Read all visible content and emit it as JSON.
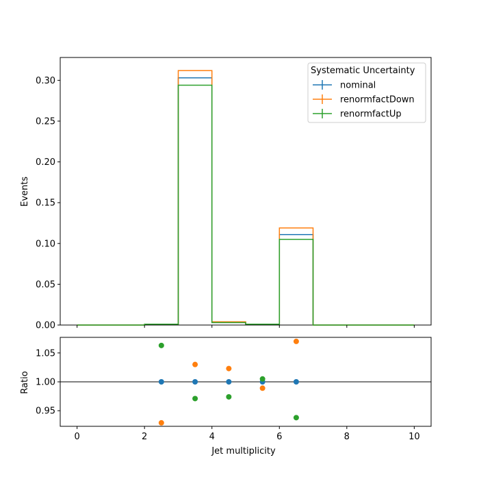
{
  "chart_data": [
    {
      "type": "line",
      "ylabel": "Events",
      "xlim": [
        -0.5,
        10.5
      ],
      "ylim": [
        0,
        0.328
      ],
      "xticks": [
        0,
        2,
        4,
        6,
        8,
        10
      ],
      "yticks": [
        "0.00",
        "0.05",
        "0.10",
        "0.15",
        "0.20",
        "0.25",
        "0.30"
      ],
      "bin_edges": [
        0,
        1,
        2,
        3,
        4,
        5,
        6,
        7,
        8,
        9,
        10
      ],
      "legend": {
        "title": "Systematic Uncertainty",
        "placement": "upper right"
      },
      "series": [
        {
          "name": "nominal",
          "color": "#1f77b4",
          "values": [
            0,
            0,
            0.001,
            0.303,
            0.003,
            0.001,
            0.111,
            0,
            0,
            0
          ]
        },
        {
          "name": "renormfactDown",
          "color": "#ff7f0e",
          "values": [
            0,
            0,
            0.001,
            0.312,
            0.004,
            0.001,
            0.119,
            0,
            0,
            0
          ]
        },
        {
          "name": "renormfactUp",
          "color": "#2ca02c",
          "values": [
            0,
            0,
            0.001,
            0.294,
            0.003,
            0.001,
            0.105,
            0,
            0,
            0
          ]
        }
      ]
    },
    {
      "type": "scatter",
      "xlabel": "Jet multiplicity",
      "ylabel": "Ratio",
      "xlim": [
        -0.5,
        10.5
      ],
      "ylim": [
        0.923,
        1.077
      ],
      "xticks": [
        0,
        2,
        4,
        6,
        8,
        10
      ],
      "yticks": [
        "0.95",
        "1.00",
        "1.05"
      ],
      "reference_line": 1.0,
      "series": [
        {
          "name": "nominal",
          "color": "#1f77b4",
          "x": [
            2.5,
            3.5,
            4.5,
            5.5,
            6.5
          ],
          "y": [
            1.0,
            1.0,
            1.0,
            1.0,
            1.0
          ]
        },
        {
          "name": "renormfactDown",
          "color": "#ff7f0e",
          "x": [
            2.5,
            3.5,
            4.5,
            5.5,
            6.5
          ],
          "y": [
            0.929,
            1.03,
            1.023,
            0.989,
            1.07
          ]
        },
        {
          "name": "renormfactUp",
          "color": "#2ca02c",
          "x": [
            2.5,
            3.5,
            4.5,
            5.5,
            6.5
          ],
          "y": [
            1.063,
            0.971,
            0.974,
            1.005,
            0.938
          ]
        }
      ]
    }
  ]
}
